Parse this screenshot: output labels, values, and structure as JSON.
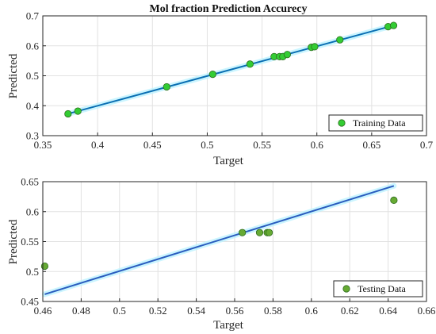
{
  "chart_data": [
    {
      "type": "scatter",
      "title": "Mol fraction Prediction Accurecy",
      "xlabel": "Target",
      "ylabel": "Predicted",
      "xlim": [
        0.35,
        0.7
      ],
      "ylim": [
        0.3,
        0.7
      ],
      "xticks": [
        "0.35",
        "0.4",
        "0.45",
        "0.5",
        "0.55",
        "0.6",
        "0.65",
        "0.7"
      ],
      "yticks": [
        "0.3",
        "0.4",
        "0.5",
        "0.6",
        "0.7"
      ],
      "grid": true,
      "legend_position": "bottom-right",
      "series": [
        {
          "name": "Training Data",
          "color": "#33cc33",
          "points": [
            [
              0.373,
              0.373
            ],
            [
              0.382,
              0.382
            ],
            [
              0.463,
              0.463
            ],
            [
              0.505,
              0.505
            ],
            [
              0.539,
              0.539
            ],
            [
              0.561,
              0.564
            ],
            [
              0.566,
              0.564
            ],
            [
              0.569,
              0.564
            ],
            [
              0.573,
              0.571
            ],
            [
              0.595,
              0.595
            ],
            [
              0.598,
              0.597
            ],
            [
              0.621,
              0.62
            ],
            [
              0.665,
              0.664
            ],
            [
              0.67,
              0.668
            ]
          ]
        }
      ],
      "fit_line": {
        "color": "#0a6fb3",
        "x": [
          0.373,
          0.67
        ],
        "y": [
          0.373,
          0.668
        ]
      }
    },
    {
      "type": "scatter",
      "title": "",
      "xlabel": "Target",
      "ylabel": "Predicted",
      "xlim": [
        0.46,
        0.66
      ],
      "ylim": [
        0.45,
        0.65
      ],
      "xticks": [
        "0.46",
        "0.48",
        "0.5",
        "0.52",
        "0.54",
        "0.56",
        "0.58",
        "0.6",
        "0.62",
        "0.64",
        "0.66"
      ],
      "yticks": [
        "0.45",
        "0.5",
        "0.55",
        "0.6",
        "0.65"
      ],
      "grid": true,
      "legend_position": "bottom-right",
      "series": [
        {
          "name": "Testing Data",
          "color": "#66aa33",
          "points": [
            [
              0.461,
              0.509
            ],
            [
              0.564,
              0.565
            ],
            [
              0.573,
              0.565
            ],
            [
              0.577,
              0.565
            ],
            [
              0.578,
              0.565
            ],
            [
              0.643,
              0.619
            ]
          ]
        }
      ],
      "fit_line": {
        "color": "#2a5dbf",
        "x": [
          0.461,
          0.643
        ],
        "y": [
          0.462,
          0.643
        ]
      }
    }
  ]
}
